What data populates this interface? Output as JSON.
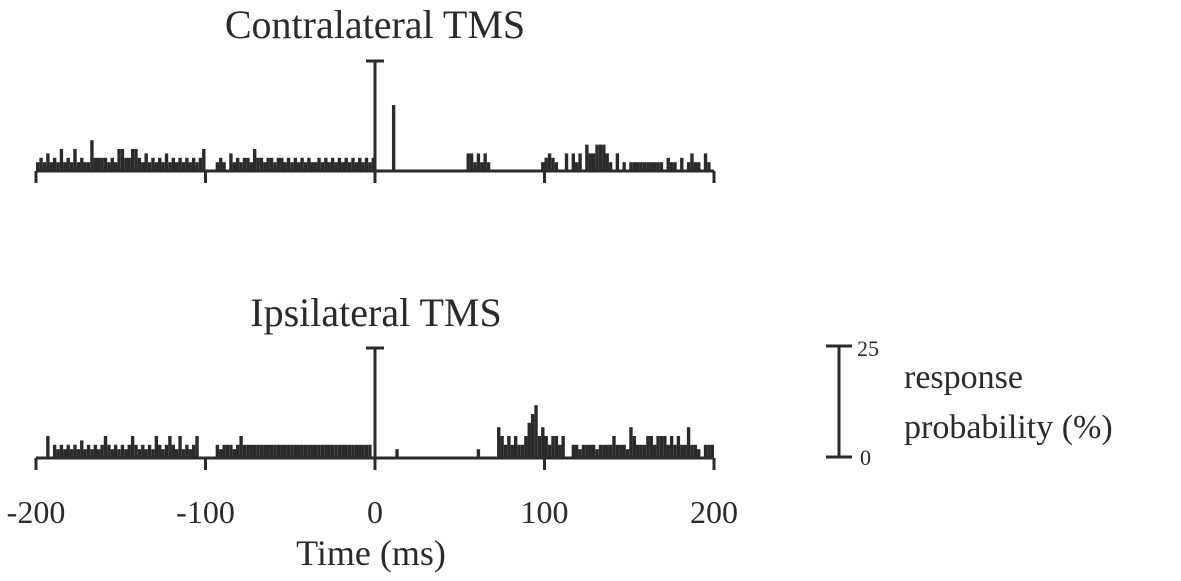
{
  "chart_data": [
    {
      "type": "bar",
      "title": "Contralateral TMS",
      "xlim": [
        -200,
        200
      ],
      "ylim": [
        0,
        25
      ],
      "stimulus_marker_x": 0,
      "x_ticks": [
        -200,
        -100,
        0,
        100,
        200
      ],
      "bin_width": 2,
      "bins": [
        {
          "x": -200,
          "y": 2
        },
        {
          "x": -198,
          "y": 3
        },
        {
          "x": -196,
          "y": 2
        },
        {
          "x": -194,
          "y": 4
        },
        {
          "x": -192,
          "y": 2
        },
        {
          "x": -190,
          "y": 3
        },
        {
          "x": -188,
          "y": 2
        },
        {
          "x": -186,
          "y": 5
        },
        {
          "x": -184,
          "y": 2
        },
        {
          "x": -182,
          "y": 3
        },
        {
          "x": -180,
          "y": 2
        },
        {
          "x": -178,
          "y": 5
        },
        {
          "x": -176,
          "y": 2
        },
        {
          "x": -174,
          "y": 3
        },
        {
          "x": -172,
          "y": 2
        },
        {
          "x": -170,
          "y": 2
        },
        {
          "x": -168,
          "y": 7
        },
        {
          "x": -166,
          "y": 3
        },
        {
          "x": -164,
          "y": 3
        },
        {
          "x": -162,
          "y": 3
        },
        {
          "x": -160,
          "y": 3
        },
        {
          "x": -158,
          "y": 2
        },
        {
          "x": -156,
          "y": 3
        },
        {
          "x": -154,
          "y": 2
        },
        {
          "x": -152,
          "y": 5
        },
        {
          "x": -150,
          "y": 5
        },
        {
          "x": -148,
          "y": 3
        },
        {
          "x": -146,
          "y": 3
        },
        {
          "x": -144,
          "y": 5
        },
        {
          "x": -142,
          "y": 5
        },
        {
          "x": -140,
          "y": 3
        },
        {
          "x": -138,
          "y": 2
        },
        {
          "x": -136,
          "y": 4
        },
        {
          "x": -134,
          "y": 2
        },
        {
          "x": -132,
          "y": 3
        },
        {
          "x": -130,
          "y": 2
        },
        {
          "x": -128,
          "y": 3
        },
        {
          "x": -126,
          "y": 2
        },
        {
          "x": -124,
          "y": 4
        },
        {
          "x": -122,
          "y": 2
        },
        {
          "x": -120,
          "y": 3
        },
        {
          "x": -118,
          "y": 2
        },
        {
          "x": -116,
          "y": 3
        },
        {
          "x": -114,
          "y": 2
        },
        {
          "x": -112,
          "y": 3
        },
        {
          "x": -110,
          "y": 2
        },
        {
          "x": -108,
          "y": 3
        },
        {
          "x": -106,
          "y": 2
        },
        {
          "x": -104,
          "y": 3
        },
        {
          "x": -102,
          "y": 5
        },
        {
          "x": -94,
          "y": 2
        },
        {
          "x": -92,
          "y": 3
        },
        {
          "x": -90,
          "y": 2
        },
        {
          "x": -86,
          "y": 4
        },
        {
          "x": -84,
          "y": 2
        },
        {
          "x": -82,
          "y": 3
        },
        {
          "x": -80,
          "y": 2
        },
        {
          "x": -78,
          "y": 3
        },
        {
          "x": -76,
          "y": 3
        },
        {
          "x": -74,
          "y": 2
        },
        {
          "x": -72,
          "y": 5
        },
        {
          "x": -70,
          "y": 3
        },
        {
          "x": -68,
          "y": 3
        },
        {
          "x": -66,
          "y": 2
        },
        {
          "x": -64,
          "y": 3
        },
        {
          "x": -62,
          "y": 3
        },
        {
          "x": -60,
          "y": 2
        },
        {
          "x": -58,
          "y": 3
        },
        {
          "x": -56,
          "y": 3
        },
        {
          "x": -54,
          "y": 2
        },
        {
          "x": -52,
          "y": 3
        },
        {
          "x": -50,
          "y": 2
        },
        {
          "x": -48,
          "y": 3
        },
        {
          "x": -46,
          "y": 2
        },
        {
          "x": -44,
          "y": 3
        },
        {
          "x": -42,
          "y": 2
        },
        {
          "x": -40,
          "y": 3
        },
        {
          "x": -38,
          "y": 2
        },
        {
          "x": -36,
          "y": 2
        },
        {
          "x": -34,
          "y": 3
        },
        {
          "x": -32,
          "y": 2
        },
        {
          "x": -30,
          "y": 3
        },
        {
          "x": -28,
          "y": 2
        },
        {
          "x": -26,
          "y": 3
        },
        {
          "x": -24,
          "y": 2
        },
        {
          "x": -22,
          "y": 3
        },
        {
          "x": -20,
          "y": 2
        },
        {
          "x": -18,
          "y": 3
        },
        {
          "x": -16,
          "y": 2
        },
        {
          "x": -14,
          "y": 3
        },
        {
          "x": -12,
          "y": 2
        },
        {
          "x": -10,
          "y": 3
        },
        {
          "x": -8,
          "y": 2
        },
        {
          "x": -6,
          "y": 3
        },
        {
          "x": -4,
          "y": 2
        },
        {
          "x": -2,
          "y": 3
        },
        {
          "x": 10,
          "y": 15
        },
        {
          "x": 54,
          "y": 4
        },
        {
          "x": 56,
          "y": 4
        },
        {
          "x": 58,
          "y": 2
        },
        {
          "x": 60,
          "y": 4
        },
        {
          "x": 62,
          "y": 2
        },
        {
          "x": 64,
          "y": 4
        },
        {
          "x": 66,
          "y": 2
        },
        {
          "x": 98,
          "y": 2
        },
        {
          "x": 100,
          "y": 3
        },
        {
          "x": 102,
          "y": 4
        },
        {
          "x": 104,
          "y": 3
        },
        {
          "x": 106,
          "y": 2
        },
        {
          "x": 112,
          "y": 4
        },
        {
          "x": 116,
          "y": 4
        },
        {
          "x": 118,
          "y": 2
        },
        {
          "x": 120,
          "y": 4
        },
        {
          "x": 124,
          "y": 6
        },
        {
          "x": 126,
          "y": 4
        },
        {
          "x": 128,
          "y": 4
        },
        {
          "x": 130,
          "y": 6
        },
        {
          "x": 132,
          "y": 6
        },
        {
          "x": 134,
          "y": 6
        },
        {
          "x": 136,
          "y": 4
        },
        {
          "x": 138,
          "y": 2
        },
        {
          "x": 142,
          "y": 4
        },
        {
          "x": 146,
          "y": 2
        },
        {
          "x": 150,
          "y": 2
        },
        {
          "x": 152,
          "y": 2
        },
        {
          "x": 154,
          "y": 2
        },
        {
          "x": 156,
          "y": 2
        },
        {
          "x": 158,
          "y": 2
        },
        {
          "x": 160,
          "y": 2
        },
        {
          "x": 162,
          "y": 2
        },
        {
          "x": 164,
          "y": 2
        },
        {
          "x": 166,
          "y": 2
        },
        {
          "x": 168,
          "y": 2
        },
        {
          "x": 172,
          "y": 3
        },
        {
          "x": 174,
          "y": 2
        },
        {
          "x": 176,
          "y": 2
        },
        {
          "x": 180,
          "y": 3
        },
        {
          "x": 184,
          "y": 2
        },
        {
          "x": 186,
          "y": 4
        },
        {
          "x": 188,
          "y": 2
        },
        {
          "x": 190,
          "y": 2
        },
        {
          "x": 194,
          "y": 4
        },
        {
          "x": 196,
          "y": 2
        }
      ]
    },
    {
      "type": "bar",
      "title": "Ipsilateral TMS",
      "xlim": [
        -200,
        200
      ],
      "ylim": [
        0,
        25
      ],
      "stimulus_marker_x": 0,
      "x_ticks": [
        -200,
        -100,
        0,
        100,
        200
      ],
      "x_tick_labels": [
        "-200",
        "-100",
        "0",
        "100",
        "200"
      ],
      "xlabel": "Time (ms)",
      "bin_width": 2,
      "bins": [
        {
          "x": -194,
          "y": 5
        },
        {
          "x": -190,
          "y": 3
        },
        {
          "x": -188,
          "y": 2
        },
        {
          "x": -186,
          "y": 3
        },
        {
          "x": -184,
          "y": 2
        },
        {
          "x": -182,
          "y": 3
        },
        {
          "x": -180,
          "y": 2
        },
        {
          "x": -178,
          "y": 3
        },
        {
          "x": -176,
          "y": 2
        },
        {
          "x": -174,
          "y": 4
        },
        {
          "x": -172,
          "y": 2
        },
        {
          "x": -170,
          "y": 3
        },
        {
          "x": -168,
          "y": 2
        },
        {
          "x": -166,
          "y": 3
        },
        {
          "x": -164,
          "y": 2
        },
        {
          "x": -162,
          "y": 3
        },
        {
          "x": -160,
          "y": 5
        },
        {
          "x": -158,
          "y": 3
        },
        {
          "x": -156,
          "y": 2
        },
        {
          "x": -154,
          "y": 3
        },
        {
          "x": -152,
          "y": 2
        },
        {
          "x": -150,
          "y": 3
        },
        {
          "x": -148,
          "y": 2
        },
        {
          "x": -146,
          "y": 3
        },
        {
          "x": -144,
          "y": 5
        },
        {
          "x": -142,
          "y": 3
        },
        {
          "x": -140,
          "y": 2
        },
        {
          "x": -138,
          "y": 3
        },
        {
          "x": -136,
          "y": 2
        },
        {
          "x": -134,
          "y": 3
        },
        {
          "x": -132,
          "y": 2
        },
        {
          "x": -130,
          "y": 5
        },
        {
          "x": -128,
          "y": 3
        },
        {
          "x": -126,
          "y": 2
        },
        {
          "x": -124,
          "y": 3
        },
        {
          "x": -122,
          "y": 5
        },
        {
          "x": -120,
          "y": 3
        },
        {
          "x": -118,
          "y": 2
        },
        {
          "x": -116,
          "y": 5
        },
        {
          "x": -114,
          "y": 2
        },
        {
          "x": -112,
          "y": 3
        },
        {
          "x": -110,
          "y": 2
        },
        {
          "x": -108,
          "y": 3
        },
        {
          "x": -106,
          "y": 5
        },
        {
          "x": -94,
          "y": 3
        },
        {
          "x": -92,
          "y": 2
        },
        {
          "x": -90,
          "y": 3
        },
        {
          "x": -88,
          "y": 3
        },
        {
          "x": -86,
          "y": 3
        },
        {
          "x": -84,
          "y": 2
        },
        {
          "x": -82,
          "y": 3
        },
        {
          "x": -80,
          "y": 5
        },
        {
          "x": -78,
          "y": 3
        },
        {
          "x": -76,
          "y": 3
        },
        {
          "x": -74,
          "y": 3
        },
        {
          "x": -72,
          "y": 3
        },
        {
          "x": -70,
          "y": 3
        },
        {
          "x": -68,
          "y": 3
        },
        {
          "x": -66,
          "y": 3
        },
        {
          "x": -64,
          "y": 3
        },
        {
          "x": -62,
          "y": 3
        },
        {
          "x": -60,
          "y": 3
        },
        {
          "x": -58,
          "y": 3
        },
        {
          "x": -56,
          "y": 3
        },
        {
          "x": -54,
          "y": 3
        },
        {
          "x": -52,
          "y": 3
        },
        {
          "x": -50,
          "y": 3
        },
        {
          "x": -48,
          "y": 3
        },
        {
          "x": -46,
          "y": 3
        },
        {
          "x": -44,
          "y": 3
        },
        {
          "x": -42,
          "y": 3
        },
        {
          "x": -40,
          "y": 3
        },
        {
          "x": -38,
          "y": 3
        },
        {
          "x": -36,
          "y": 3
        },
        {
          "x": -34,
          "y": 3
        },
        {
          "x": -32,
          "y": 3
        },
        {
          "x": -30,
          "y": 3
        },
        {
          "x": -28,
          "y": 3
        },
        {
          "x": -26,
          "y": 3
        },
        {
          "x": -24,
          "y": 3
        },
        {
          "x": -22,
          "y": 3
        },
        {
          "x": -20,
          "y": 3
        },
        {
          "x": -18,
          "y": 3
        },
        {
          "x": -16,
          "y": 3
        },
        {
          "x": -14,
          "y": 3
        },
        {
          "x": -12,
          "y": 3
        },
        {
          "x": -10,
          "y": 3
        },
        {
          "x": -8,
          "y": 3
        },
        {
          "x": -6,
          "y": 3
        },
        {
          "x": -4,
          "y": 3
        },
        {
          "x": 12,
          "y": 2
        },
        {
          "x": 60,
          "y": 2
        },
        {
          "x": 72,
          "y": 7
        },
        {
          "x": 74,
          "y": 5
        },
        {
          "x": 76,
          "y": 3
        },
        {
          "x": 78,
          "y": 5
        },
        {
          "x": 80,
          "y": 3
        },
        {
          "x": 82,
          "y": 5
        },
        {
          "x": 84,
          "y": 3
        },
        {
          "x": 86,
          "y": 3
        },
        {
          "x": 88,
          "y": 5
        },
        {
          "x": 90,
          "y": 8
        },
        {
          "x": 92,
          "y": 10
        },
        {
          "x": 94,
          "y": 12
        },
        {
          "x": 96,
          "y": 5
        },
        {
          "x": 98,
          "y": 7
        },
        {
          "x": 100,
          "y": 5
        },
        {
          "x": 102,
          "y": 3
        },
        {
          "x": 104,
          "y": 5
        },
        {
          "x": 106,
          "y": 5
        },
        {
          "x": 108,
          "y": 3
        },
        {
          "x": 110,
          "y": 5
        },
        {
          "x": 116,
          "y": 3
        },
        {
          "x": 118,
          "y": 3
        },
        {
          "x": 120,
          "y": 2
        },
        {
          "x": 122,
          "y": 3
        },
        {
          "x": 124,
          "y": 3
        },
        {
          "x": 126,
          "y": 3
        },
        {
          "x": 128,
          "y": 3
        },
        {
          "x": 130,
          "y": 2
        },
        {
          "x": 132,
          "y": 3
        },
        {
          "x": 134,
          "y": 3
        },
        {
          "x": 136,
          "y": 3
        },
        {
          "x": 138,
          "y": 3
        },
        {
          "x": 140,
          "y": 5
        },
        {
          "x": 142,
          "y": 3
        },
        {
          "x": 144,
          "y": 3
        },
        {
          "x": 146,
          "y": 3
        },
        {
          "x": 148,
          "y": 2
        },
        {
          "x": 150,
          "y": 7
        },
        {
          "x": 152,
          "y": 5
        },
        {
          "x": 154,
          "y": 3
        },
        {
          "x": 156,
          "y": 3
        },
        {
          "x": 158,
          "y": 3
        },
        {
          "x": 160,
          "y": 5
        },
        {
          "x": 162,
          "y": 5
        },
        {
          "x": 164,
          "y": 3
        },
        {
          "x": 166,
          "y": 5
        },
        {
          "x": 168,
          "y": 5
        },
        {
          "x": 170,
          "y": 5
        },
        {
          "x": 172,
          "y": 3
        },
        {
          "x": 174,
          "y": 5
        },
        {
          "x": 176,
          "y": 3
        },
        {
          "x": 178,
          "y": 5
        },
        {
          "x": 180,
          "y": 3
        },
        {
          "x": 182,
          "y": 3
        },
        {
          "x": 184,
          "y": 7
        },
        {
          "x": 186,
          "y": 3
        },
        {
          "x": 188,
          "y": 3
        },
        {
          "x": 190,
          "y": 2
        },
        {
          "x": 194,
          "y": 3
        },
        {
          "x": 196,
          "y": 3
        },
        {
          "x": 198,
          "y": 3
        }
      ]
    }
  ],
  "scale_bar": {
    "top_label": "25",
    "bottom_label": "0",
    "label_lines": [
      "response",
      "probability (%)"
    ],
    "range": [
      0,
      25
    ]
  },
  "colors": {
    "ink": "#2a2a2a",
    "background": "#ffffff"
  }
}
